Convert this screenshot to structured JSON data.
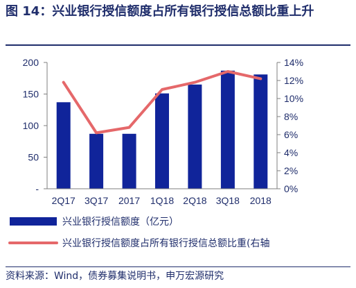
{
  "figure": {
    "title": "图 14：兴业银行授信额度占所有银行授信总额比重上升"
  },
  "source": "资料来源：Wind，债券募集说明书，申万宏源研究",
  "colors": {
    "bar": "#10249a",
    "line": "#e5686a",
    "text": "#1f2d6b",
    "axis": "#7f7f7f"
  },
  "chart_data": {
    "type": "bar",
    "categories": [
      "2Q17",
      "3Q17",
      "2017",
      "1Q18",
      "2Q18",
      "3Q18",
      "2018"
    ],
    "series": [
      {
        "name": "兴业银行授信额度（亿元）",
        "type": "bar",
        "axis": "left",
        "values": [
          137,
          87,
          87,
          151,
          165,
          187,
          181
        ]
      },
      {
        "name": "兴业银行授信额度占所有银行授信总额比重(右轴",
        "type": "line",
        "axis": "right",
        "values": [
          11.8,
          6.2,
          6.8,
          11.0,
          11.8,
          13.0,
          12.2
        ]
      }
    ],
    "left_axis": {
      "ylim": [
        0,
        200
      ],
      "ticks": [
        {
          "value": 200,
          "label": "200"
        },
        {
          "value": 150,
          "label": "150"
        },
        {
          "value": 100,
          "label": "100"
        },
        {
          "value": 50,
          "label": "50"
        },
        {
          "value": 0,
          "label": "-"
        }
      ]
    },
    "right_axis": {
      "ylim": [
        0,
        14
      ],
      "ticks": [
        {
          "value": 14,
          "label": "14%"
        },
        {
          "value": 12,
          "label": "12%"
        },
        {
          "value": 10,
          "label": "10%"
        },
        {
          "value": 8,
          "label": "8%"
        },
        {
          "value": 6,
          "label": "6%"
        },
        {
          "value": 4,
          "label": "4%"
        },
        {
          "value": 2,
          "label": "2%"
        },
        {
          "value": 0,
          "label": "0%"
        }
      ]
    },
    "grid": false,
    "legend_position": "bottom"
  }
}
